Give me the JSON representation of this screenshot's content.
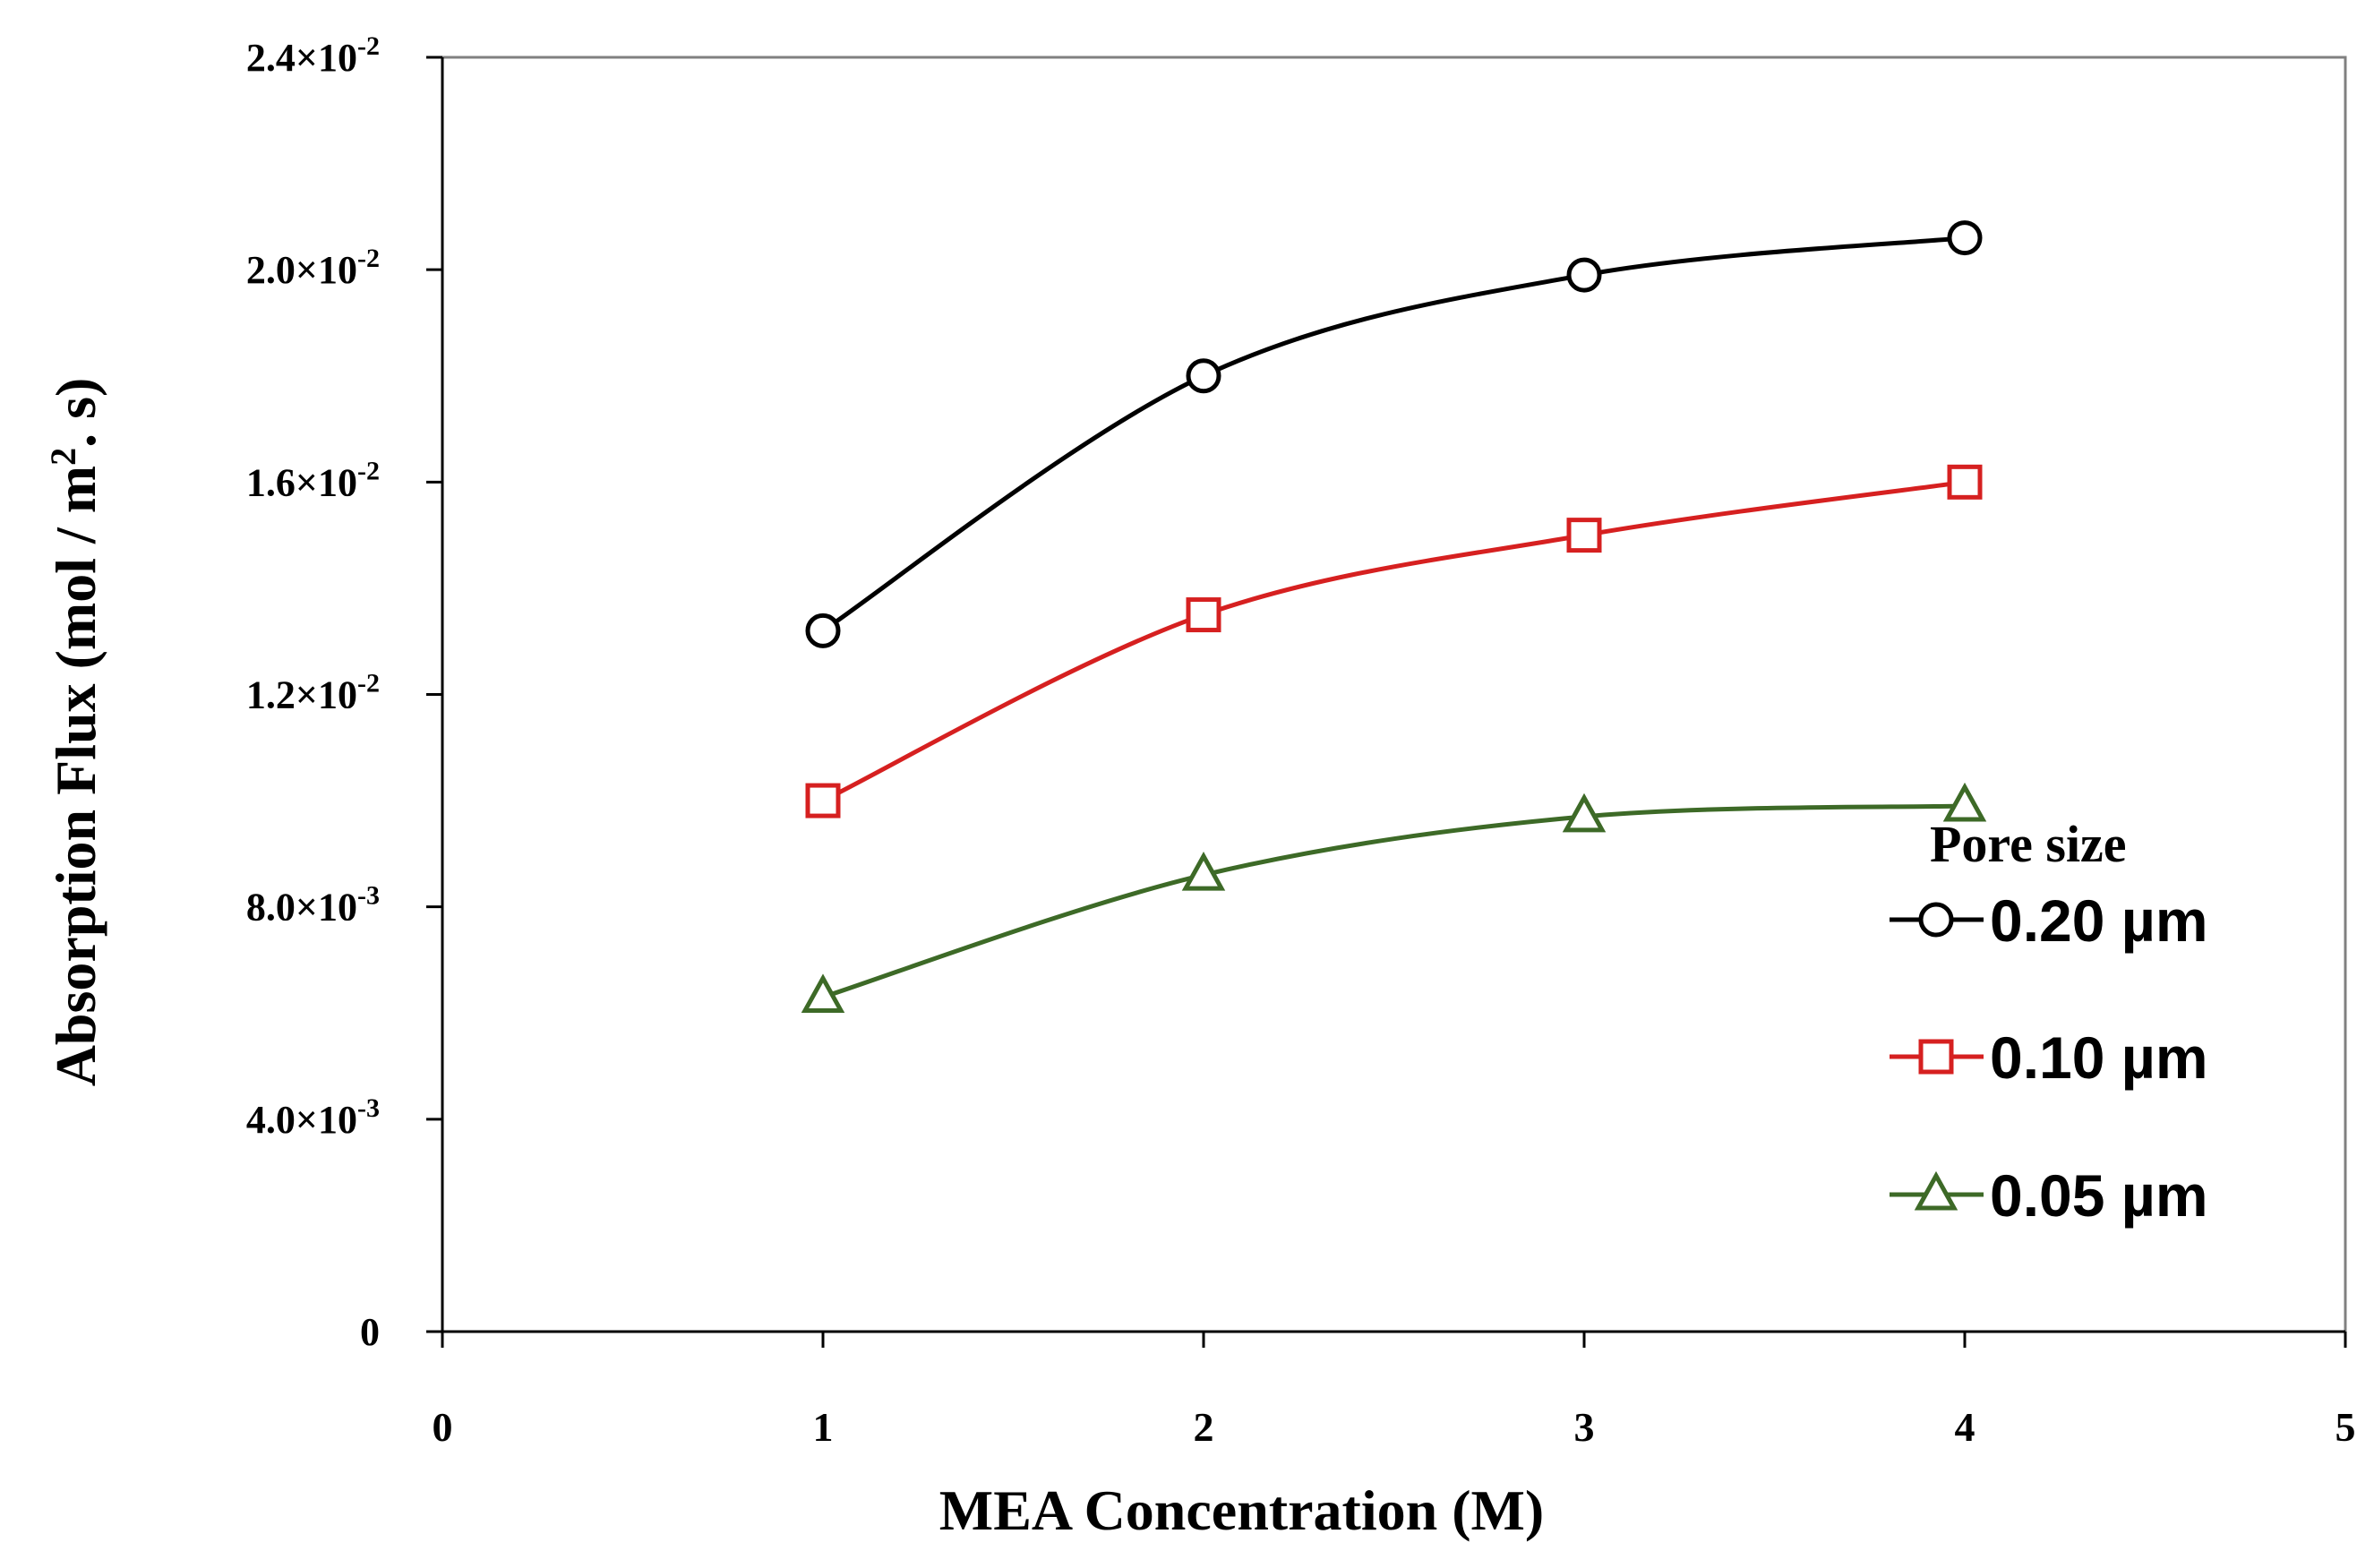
{
  "chart_data": {
    "type": "line",
    "title": "",
    "xlabel": "MEA Concentration (M)",
    "ylabel_main": "Absorption Flux (mol / m",
    "ylabel_sup": "2",
    "ylabel_end": ". s)",
    "xlim": [
      0,
      5
    ],
    "ylim": [
      0,
      0.024
    ],
    "xticks": [
      0,
      1,
      2,
      3,
      4,
      5
    ],
    "xtick_labels": [
      "0",
      "1",
      "2",
      "3",
      "4",
      "5"
    ],
    "yticks": [
      {
        "value": 0,
        "mant": "0",
        "exp": ""
      },
      {
        "value": 0.004,
        "mant": "4.0×10",
        "exp": "-3"
      },
      {
        "value": 0.008,
        "mant": "8.0×10",
        "exp": "-3"
      },
      {
        "value": 0.012,
        "mant": "1.2×10",
        "exp": "-2"
      },
      {
        "value": 0.016,
        "mant": "1.6×10",
        "exp": "-2"
      },
      {
        "value": 0.02,
        "mant": "2.0×10",
        "exp": "-2"
      },
      {
        "value": 0.024,
        "mant": "2.4×10",
        "exp": "-2"
      }
    ],
    "grid": false,
    "legend_title": "Pore size",
    "legend_position": "right",
    "series": [
      {
        "name": "0.20 µm",
        "marker": "circle",
        "color": "#000000",
        "x": [
          1,
          2,
          3,
          4
        ],
        "values": [
          0.0132,
          0.018,
          0.0199,
          0.0206
        ]
      },
      {
        "name": "0.10 µm",
        "marker": "square",
        "color": "#d62020",
        "x": [
          1,
          2,
          3,
          4
        ],
        "values": [
          0.01,
          0.0135,
          0.015,
          0.016
        ]
      },
      {
        "name": "0.05 µm",
        "marker": "triangle",
        "color": "#3d6a27",
        "x": [
          1,
          2,
          3,
          4
        ],
        "values": [
          0.0063,
          0.0086,
          0.0097,
          0.0099
        ]
      }
    ]
  }
}
